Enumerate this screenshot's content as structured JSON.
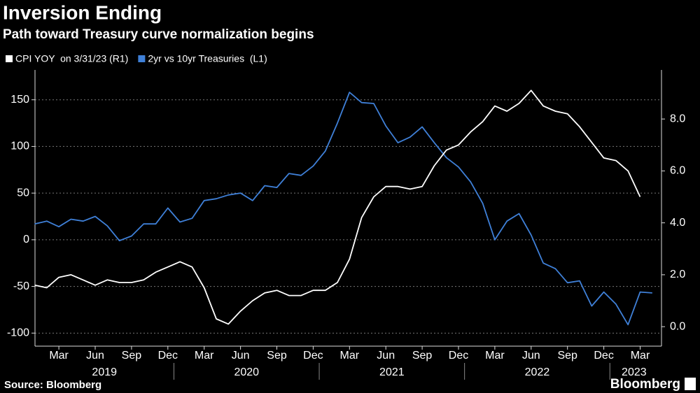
{
  "chart_data": {
    "type": "line",
    "title": "Inversion Ending",
    "subtitle": "Path toward Treasury curve normalization begins",
    "source": "Source: Bloomberg",
    "logo": "Bloomberg",
    "x": [
      "2019-01",
      "2019-02",
      "2019-03",
      "2019-04",
      "2019-05",
      "2019-06",
      "2019-07",
      "2019-08",
      "2019-09",
      "2019-10",
      "2019-11",
      "2019-12",
      "2020-01",
      "2020-02",
      "2020-03",
      "2020-04",
      "2020-05",
      "2020-06",
      "2020-07",
      "2020-08",
      "2020-09",
      "2020-10",
      "2020-11",
      "2020-12",
      "2021-01",
      "2021-02",
      "2021-03",
      "2021-04",
      "2021-05",
      "2021-06",
      "2021-07",
      "2021-08",
      "2021-09",
      "2021-10",
      "2021-11",
      "2021-12",
      "2022-01",
      "2022-02",
      "2022-03",
      "2022-04",
      "2022-05",
      "2022-06",
      "2022-07",
      "2022-08",
      "2022-09",
      "2022-10",
      "2022-11",
      "2022-12",
      "2023-01",
      "2023-02",
      "2023-03",
      "2023-04"
    ],
    "xticks": [
      {
        "value": "2019-03",
        "label": "Mar"
      },
      {
        "value": "2019-06",
        "label": "Jun"
      },
      {
        "value": "2019-09",
        "label": "Sep"
      },
      {
        "value": "2019-12",
        "label": "Dec"
      },
      {
        "value": "2020-03",
        "label": "Mar"
      },
      {
        "value": "2020-06",
        "label": "Jun"
      },
      {
        "value": "2020-09",
        "label": "Sep"
      },
      {
        "value": "2020-12",
        "label": "Dec"
      },
      {
        "value": "2021-03",
        "label": "Mar"
      },
      {
        "value": "2021-06",
        "label": "Jun"
      },
      {
        "value": "2021-09",
        "label": "Sep"
      },
      {
        "value": "2021-12",
        "label": "Dec"
      },
      {
        "value": "2022-03",
        "label": "Mar"
      },
      {
        "value": "2022-06",
        "label": "Jun"
      },
      {
        "value": "2022-09",
        "label": "Sep"
      },
      {
        "value": "2022-12",
        "label": "Dec"
      },
      {
        "value": "2023-03",
        "label": "Mar"
      }
    ],
    "years": [
      "2019",
      "2020",
      "2021",
      "2022",
      "2023"
    ],
    "ylim": [
      -114,
      182
    ],
    "yticks": [
      -100,
      -50,
      0,
      50,
      100,
      150
    ],
    "y2lim": [
      -0.75,
      9.89
    ],
    "y2ticks": [
      {
        "value": 0,
        "label": "0.0"
      },
      {
        "value": 2,
        "label": "2.0"
      },
      {
        "value": 4,
        "label": "4.0"
      },
      {
        "value": 6,
        "label": "6.0"
      },
      {
        "value": 8,
        "label": "8.0"
      }
    ],
    "grid": true,
    "series": [
      {
        "name": "CPI YOY  on 3/31/23 (R1)",
        "color": "#ffffff",
        "axis": "y2",
        "values": [
          1.6,
          1.5,
          1.9,
          2.0,
          1.8,
          1.6,
          1.8,
          1.7,
          1.7,
          1.8,
          2.1,
          2.3,
          2.5,
          2.3,
          1.5,
          0.3,
          0.1,
          0.6,
          1.0,
          1.3,
          1.4,
          1.2,
          1.2,
          1.4,
          1.4,
          1.7,
          2.6,
          4.2,
          5.0,
          5.4,
          5.4,
          5.3,
          5.4,
          6.2,
          6.8,
          7.0,
          7.5,
          7.9,
          8.5,
          8.3,
          8.6,
          9.1,
          8.5,
          8.3,
          8.2,
          7.7,
          7.1,
          6.5,
          6.4,
          6.0,
          5.0,
          null
        ]
      },
      {
        "name": "2yr vs 10yr Treasuries  (L1)",
        "color": "#3f80d8",
        "axis": "y",
        "values": [
          17,
          20,
          14,
          22,
          20,
          25,
          15,
          -1,
          4,
          17,
          17,
          34,
          19,
          23,
          42,
          44,
          48,
          50,
          42,
          58,
          56,
          71,
          69,
          79,
          95,
          125,
          158,
          147,
          146,
          122,
          104,
          110,
          121,
          104,
          88,
          78,
          62,
          39,
          0,
          20,
          28,
          5,
          -25,
          -31,
          -46,
          -44,
          -71,
          -56,
          -69,
          -91,
          -56,
          -57
        ]
      }
    ]
  }
}
